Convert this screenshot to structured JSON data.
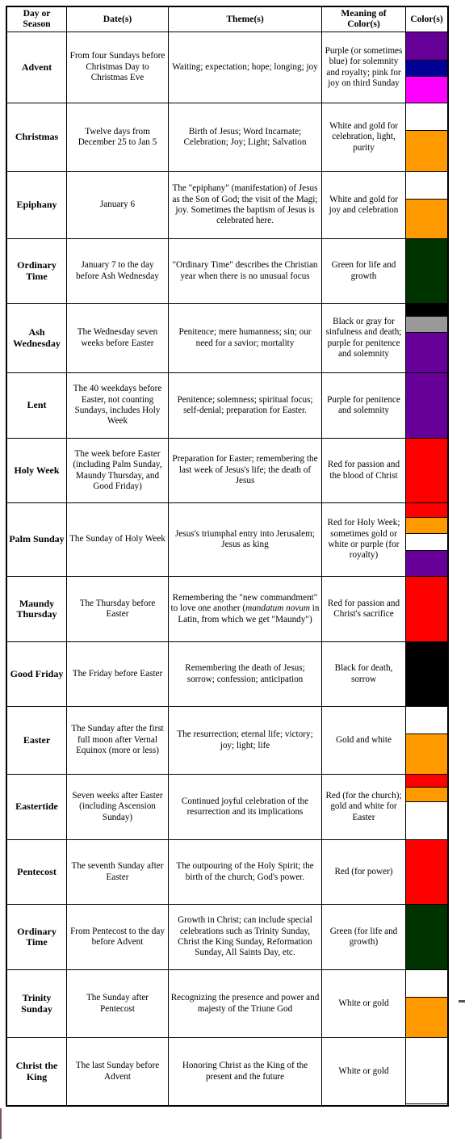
{
  "headers": [
    "Day or Season",
    "Date(s)",
    "Theme(s)",
    "Meaning of Color(s)",
    "Color(s)"
  ],
  "rows": [
    {
      "day": "Advent",
      "dates": "From four Sundays before Christmas Day to Christmas Eve",
      "theme": "Waiting; expectation; hope; longing; joy",
      "meaning": "Purple (or sometimes blue) for solemnity and royalty; pink for joy on third Sunday",
      "colors": [
        "#660099",
        "#000099",
        "#ff00ff"
      ]
    },
    {
      "day": "Christmas",
      "dates": "Twelve days from December 25 to Jan 5",
      "theme": "Birth of Jesus; Word Incarnate; Celebration; Joy; Light; Salvation",
      "meaning": "White and gold for celebration, light, purity",
      "colors": [
        "#ffffff",
        "#ff9900"
      ]
    },
    {
      "day": "Epiphany",
      "dates": "January 6",
      "theme": "The \"epiphany\" (manifestation) of Jesus as the Son of God; the visit of the Magi; joy. Sometimes the baptism of Jesus is celebrated here.",
      "meaning": "White and gold for joy and celebration",
      "colors": [
        "#ffffff",
        "#ff9900"
      ]
    },
    {
      "day": "Ordinary Time",
      "dates": "January 7 to the day before Ash Wednesday",
      "theme": "\"Ordinary Time\" describes the Christian year when there is no unusual focus",
      "meaning": "Green for life and growth",
      "colors": [
        "#003300"
      ]
    },
    {
      "day": "Ash Wednesday",
      "dates": "The Wednesday seven weeks before Easter",
      "theme": "Penitence; mere humanness; sin; our need for a savior; mortality",
      "meaning": "Black or gray for sinfulness and death; purple for penitence and solemnity",
      "colors": [
        "#000000",
        "#999999",
        "#660099"
      ]
    },
    {
      "day": "Lent",
      "dates": "The 40 weekdays before Easter, not counting Sundays, includes Holy Week",
      "theme": "Penitence; solemness; spiritual focus; self-denial; preparation for Easter.",
      "meaning": "Purple for penitence and solemnity",
      "colors": [
        "#660099"
      ]
    },
    {
      "day": "Holy Week",
      "dates": "The week before Easter (including Palm Sunday, Maundy Thursday, and Good Friday)",
      "theme": "Preparation for Easter; remembering the last week of Jesus's life; the death of Jesus",
      "meaning": "Red for passion and the blood of Christ",
      "colors": [
        "#ff0000"
      ]
    },
    {
      "day": "Palm Sunday",
      "dates": "The Sunday of Holy Week",
      "theme": "Jesus's triumphal entry into Jerusalem; Jesus as king",
      "meaning": "Red for Holy Week; sometimes gold or white or purple (for royalty)",
      "colors": [
        "#ff0000",
        "#ff9900",
        "#ffffff",
        "#660099"
      ]
    },
    {
      "day": "Maundy Thursday",
      "dates": "The Thursday before Easter",
      "theme_parts": [
        "Remembering the \"new commandment\" to love one another (",
        "mandatum novum",
        " in Latin, from which we get \"Maundy\")"
      ],
      "meaning": "Red for passion and Christ's sacrifice",
      "colors": [
        "#ff0000"
      ]
    },
    {
      "day": "Good Friday",
      "dates": "The Friday before Easter",
      "theme": "Remembering the death of Jesus; sorrow; confession; anticipation",
      "meaning": "Black for death, sorrow",
      "colors": [
        "#000000"
      ]
    },
    {
      "day": "Easter",
      "dates": "The Sunday after the first full moon after Vernal Equinox (more or less)",
      "theme": "The resurrection; eternal life; victory; joy; light; life",
      "meaning": "Gold and white",
      "colors": [
        "#ffffff",
        "#ff9900"
      ]
    },
    {
      "day": "Eastertide",
      "dates": "Seven weeks after Easter (including Ascension Sunday)",
      "theme": "Continued joyful celebration of the resurrection and its implications",
      "meaning": "Red (for the church); gold and white for Easter",
      "colors": [
        "#ff0000",
        "#ff9900",
        "#ffffff"
      ]
    },
    {
      "day": "Pentecost",
      "dates": "The seventh Sunday after Easter",
      "theme": "The outpouring of the Holy Spirit; the birth of the church; God's power.",
      "meaning": "Red (for power)",
      "colors": [
        "#ff0000"
      ]
    },
    {
      "day": "Ordinary Time",
      "dates": "From Pentecost to the day before Advent",
      "theme": "Growth in Christ; can include special celebrations such as Trinity Sunday, Christ the King Sunday, Reformation Sunday, All Saints Day, etc.",
      "meaning": "Green (for life and growth)",
      "colors": [
        "#003300"
      ]
    },
    {
      "day": "Trinity Sunday",
      "dates": "The Sunday after Pentecost",
      "theme": "Recognizing the presence and power and majesty of the Triune God",
      "meaning": "White or gold",
      "colors": [
        "#ffffff",
        "#ff9900"
      ]
    },
    {
      "day": "Christ the King",
      "dates": "The last Sunday before Advent",
      "theme": "Honoring Christ as the King of the present and the future",
      "meaning": "White or gold",
      "colors": [
        "#ffffff",
        "#ff9900"
      ]
    }
  ]
}
